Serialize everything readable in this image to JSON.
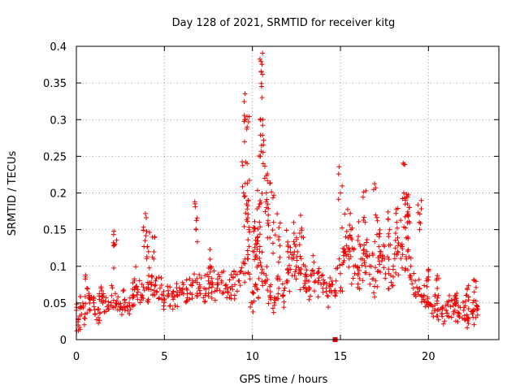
{
  "chart_data": {
    "type": "scatter",
    "title": "Day 128 of 2021, SRMTID for receiver kitg",
    "xlabel": "GPS time / hours",
    "ylabel": "SRMTID / TECUs",
    "xlim": [
      0,
      24
    ],
    "ylim": [
      0,
      0.4
    ],
    "x_ticks": [
      0,
      5,
      10,
      15,
      20
    ],
    "x_tick_labels": [
      "0",
      "5",
      "10",
      "15",
      "20"
    ],
    "y_ticks": [
      0,
      0.05,
      0.1,
      0.15,
      0.2,
      0.25,
      0.3,
      0.35,
      0.4
    ],
    "y_tick_labels": [
      "0",
      "0.05",
      "0.1",
      "0.15",
      "0.2",
      "0.25",
      "0.3",
      "0.35",
      "0.4"
    ],
    "grid": true,
    "marker": "plus",
    "color": "#ee0000",
    "series": [
      {
        "name": "SRMTID",
        "x": [
          0.0,
          0.25,
          0.5,
          0.75,
          1.0,
          1.25,
          1.5,
          1.75,
          2.0,
          2.25,
          2.5,
          2.75,
          3.0,
          3.25,
          3.5,
          3.75,
          4.0,
          4.25,
          4.5,
          4.75,
          5.0,
          5.25,
          5.5,
          5.75,
          6.0,
          6.25,
          6.5,
          6.75,
          7.0,
          7.25,
          7.5,
          7.75,
          8.0,
          8.25,
          8.5,
          8.75,
          9.0,
          9.25,
          9.5,
          9.75,
          10.0,
          10.25,
          10.5,
          10.75,
          11.0,
          11.25,
          11.5,
          11.75,
          12.0,
          12.25,
          12.5,
          12.75,
          13.0,
          13.25,
          13.5,
          13.75,
          14.0,
          14.25,
          14.5,
          14.75,
          15.0,
          15.25,
          15.5,
          15.75,
          16.0,
          16.25,
          16.5,
          16.75,
          17.0,
          17.25,
          17.5,
          17.75,
          18.0,
          18.25,
          18.5,
          18.75,
          19.0,
          19.25,
          19.5,
          19.75,
          20.0,
          20.25,
          20.5,
          20.75,
          21.0,
          21.25,
          21.5,
          21.75,
          22.0,
          22.25,
          22.5,
          22.75,
          0.1,
          0.6,
          1.4,
          2.2,
          3.3,
          3.9,
          4.1,
          4.4,
          6.8,
          7.6,
          9.5,
          9.55,
          9.6,
          9.7,
          9.75,
          9.8,
          10.1,
          10.2,
          10.3,
          10.4,
          10.45,
          10.5,
          10.55,
          10.6,
          10.7,
          10.8,
          10.9,
          11.2,
          11.5,
          12.0,
          12.4,
          12.8,
          13.0,
          15.0,
          15.3,
          15.6,
          16.1,
          16.4,
          17.0,
          17.3,
          17.8,
          18.2,
          18.6,
          18.7,
          18.8,
          18.9,
          19.5,
          19.9,
          20.5,
          21.5,
          22.2,
          22.6,
          14.7
        ],
        "y": [
          0.04,
          0.045,
          0.035,
          0.05,
          0.045,
          0.03,
          0.05,
          0.045,
          0.06,
          0.05,
          0.045,
          0.055,
          0.05,
          0.06,
          0.065,
          0.06,
          0.07,
          0.075,
          0.08,
          0.07,
          0.055,
          0.06,
          0.055,
          0.06,
          0.065,
          0.07,
          0.075,
          0.08,
          0.075,
          0.07,
          0.08,
          0.075,
          0.07,
          0.08,
          0.075,
          0.07,
          0.075,
          0.08,
          0.09,
          0.11,
          0.05,
          0.07,
          0.1,
          0.08,
          0.06,
          0.05,
          0.07,
          0.06,
          0.08,
          0.11,
          0.1,
          0.09,
          0.08,
          0.07,
          0.09,
          0.08,
          0.07,
          0.06,
          0.075,
          0.08,
          0.09,
          0.12,
          0.11,
          0.1,
          0.09,
          0.11,
          0.12,
          0.1,
          0.08,
          0.12,
          0.11,
          0.09,
          0.1,
          0.12,
          0.13,
          0.11,
          0.1,
          0.08,
          0.07,
          0.06,
          0.05,
          0.045,
          0.04,
          0.035,
          0.04,
          0.045,
          0.04,
          0.035,
          0.04,
          0.03,
          0.035,
          0.04,
          0.02,
          0.07,
          0.07,
          0.13,
          0.08,
          0.135,
          0.12,
          0.11,
          0.15,
          0.1,
          0.2,
          0.27,
          0.3,
          0.24,
          0.19,
          0.15,
          0.12,
          0.13,
          0.14,
          0.16,
          0.25,
          0.365,
          0.33,
          0.3,
          0.22,
          0.18,
          0.17,
          0.16,
          0.14,
          0.12,
          0.13,
          0.14,
          0.1,
          0.2,
          0.14,
          0.15,
          0.13,
          0.16,
          0.17,
          0.12,
          0.15,
          0.16,
          0.2,
          0.19,
          0.17,
          0.18,
          0.15,
          0.08,
          0.07,
          0.06,
          0.07,
          0.065,
          0.0
        ]
      }
    ]
  }
}
